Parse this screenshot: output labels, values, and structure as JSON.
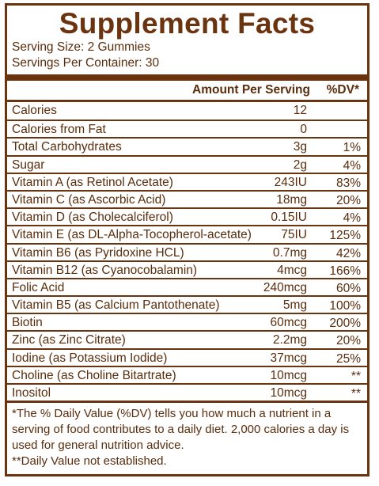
{
  "title": "Supplement Facts",
  "serving_size": "Serving Size: 2 Gummies",
  "servings_per_container": "Servings Per Container: 30",
  "header": {
    "amount": "Amount Per Serving",
    "dv": "%DV*"
  },
  "rows": [
    {
      "name": "Calories",
      "amount": "12",
      "dv": ""
    },
    {
      "name": "Calories from Fat",
      "amount": "0",
      "dv": ""
    },
    {
      "name": "Total Carbohydrates",
      "amount": "3g",
      "dv": "1%"
    },
    {
      "name": "Sugar",
      "amount": "2g",
      "dv": "4%"
    },
    {
      "name": "Vitamin A (as Retinol Acetate)",
      "amount": "243IU",
      "dv": "83%"
    },
    {
      "name": "Vitamin C (as Ascorbic Acid)",
      "amount": "18mg",
      "dv": "20%"
    },
    {
      "name": "Vitamin D (as Cholecalciferol)",
      "amount": "0.15IU",
      "dv": "4%"
    },
    {
      "name": "Vitamin E (as DL-Alpha-Tocopherol-acetate)",
      "amount": "75IU",
      "dv": "125%"
    },
    {
      "name": "Vitamin B6 (as Pyridoxine HCL)",
      "amount": "0.7mg",
      "dv": "42%"
    },
    {
      "name": "Vitamin B12 (as Cyanocobalamin)",
      "amount": "4mcg",
      "dv": "166%"
    },
    {
      "name": "Folic Acid",
      "amount": "240mcg",
      "dv": "60%"
    },
    {
      "name": "Vitamin B5 (as Calcium Pantothenate)",
      "amount": "5mg",
      "dv": "100%"
    },
    {
      "name": "Biotin",
      "amount": "60mcg",
      "dv": "200%"
    },
    {
      "name": "Zinc (as Zinc Citrate)",
      "amount": "2.2mg",
      "dv": "20%"
    },
    {
      "name": "Iodine (as Potassium Iodide)",
      "amount": "37mcg",
      "dv": "25%"
    },
    {
      "name": "Choline (as Choline Bitartrate)",
      "amount": "10mcg",
      "dv": "**"
    },
    {
      "name": "Inositol",
      "amount": "10mcg",
      "dv": "**"
    }
  ],
  "footnotes": {
    "dv_note": "*The % Daily Value (%DV) tells you how much a nutrient in a serving of food contributes to a daily diet. 2,000 calories a day is used for general nutrition advice.",
    "not_established": "**Daily Value not established."
  },
  "colors": {
    "text": "#5a2d0c",
    "rule": "#6b3410"
  }
}
